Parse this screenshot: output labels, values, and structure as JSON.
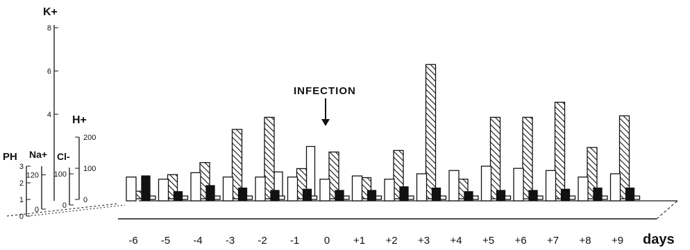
{
  "chart_data": {
    "type": "bar",
    "subtype": "3d-grouped-bar",
    "title": "",
    "annotation": "INFECTION",
    "xlabel": "days",
    "categories": [
      "-6",
      "-5",
      "-4",
      "-3",
      "-2",
      "-1",
      "0",
      "+1",
      "+2",
      "+3",
      "+4",
      "+5",
      "+6",
      "+7",
      "+8",
      "+9"
    ],
    "axes": [
      {
        "name": "PH",
        "ticks": [
          "0",
          "1",
          "2",
          "3"
        ],
        "range": [
          0,
          3
        ]
      },
      {
        "name": "Na+",
        "ticks": [
          "0",
          "120"
        ],
        "range": [
          0,
          150
        ]
      },
      {
        "name": "Cl-",
        "ticks": [
          "0",
          "100"
        ],
        "range": [
          0,
          120
        ]
      },
      {
        "name": "H+",
        "ticks": [
          "0",
          "100",
          "200"
        ],
        "range": [
          0,
          200
        ]
      },
      {
        "name": "K+",
        "ticks": [
          "4",
          "6",
          "8"
        ],
        "range": [
          0,
          8
        ]
      }
    ],
    "series": [
      {
        "name": "PH",
        "fill": "white",
        "values": [
          2.2,
          2.0,
          2.6,
          2.2,
          2.2,
          2.2,
          2.0,
          2.3,
          2.0,
          2.5,
          2.8,
          3.2,
          3.0,
          2.8,
          2.2,
          2.5
        ]
      },
      {
        "name": "K+",
        "fill": "hatched",
        "values": [
          0.5,
          1.6,
          2.4,
          4.6,
          5.4,
          2.0,
          3.1,
          1.4,
          3.2,
          8.9,
          1.3,
          5.4,
          5.4,
          6.4,
          3.4,
          5.5
        ]
      },
      {
        "name": "H+",
        "fill": "white",
        "values": [
          0,
          0,
          0,
          0,
          70,
          140,
          0,
          0,
          0,
          0,
          0,
          0,
          0,
          0,
          0,
          0
        ]
      },
      {
        "name": "Na+",
        "fill": "black",
        "values": [
          100,
          35,
          60,
          50,
          40,
          45,
          40,
          40,
          55,
          50,
          35,
          40,
          40,
          45,
          50,
          50
        ]
      },
      {
        "name": "Cl-",
        "fill": "white",
        "values": [
          30,
          30,
          30,
          30,
          30,
          30,
          30,
          30,
          30,
          30,
          30,
          30,
          30,
          30,
          30,
          30
        ]
      }
    ]
  }
}
